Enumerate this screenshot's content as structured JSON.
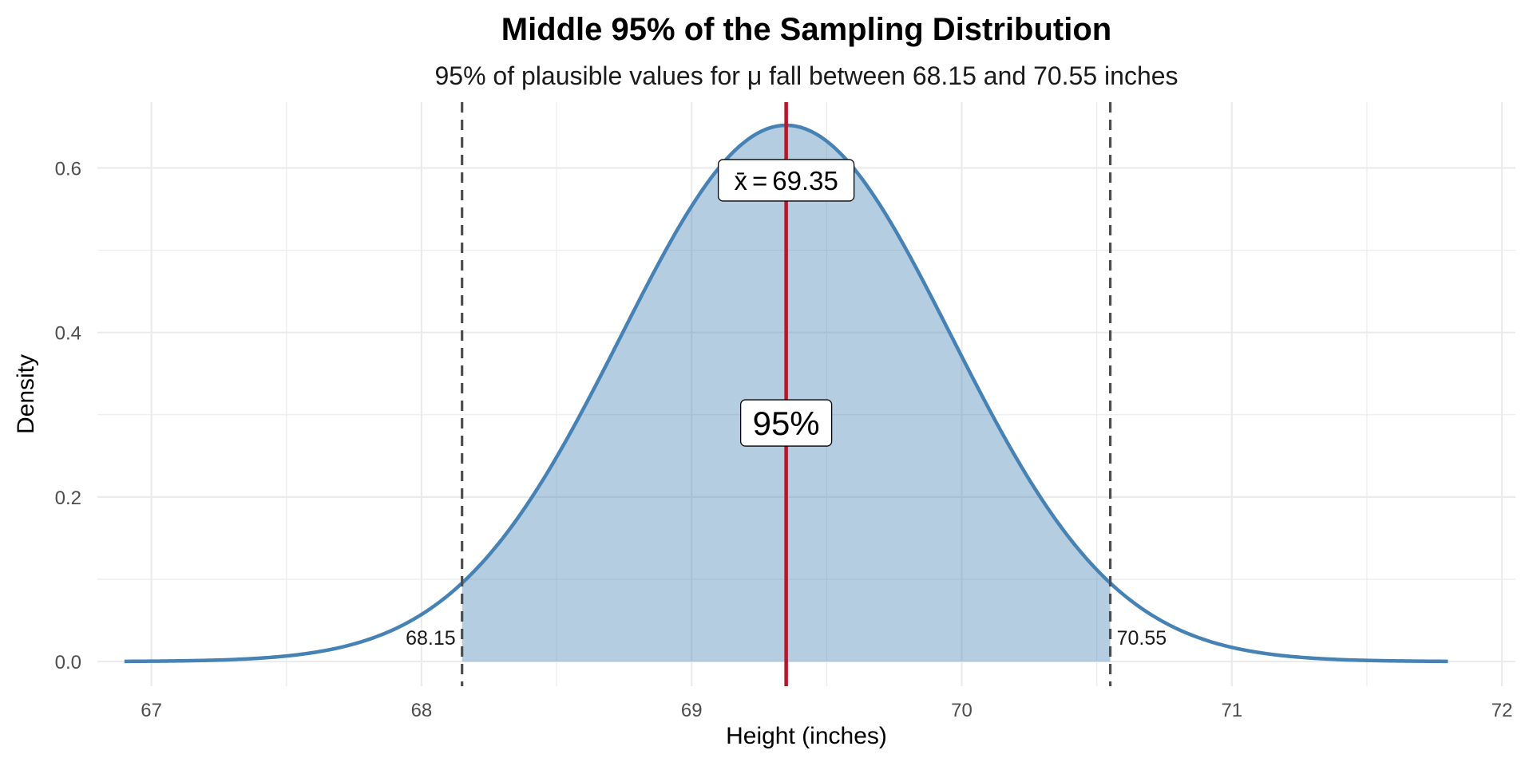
{
  "chart_data": {
    "type": "area",
    "title": "Middle 95% of the Sampling Distribution",
    "subtitle": "95% of plausible values for μ fall between 68.15 and 70.55 inches",
    "xlabel": "Height (inches)",
    "ylabel": "Density",
    "xlim": [
      66.8,
      72.05
    ],
    "ylim": [
      -0.03,
      0.68
    ],
    "x_ticks": [
      67,
      68,
      69,
      70,
      71,
      72
    ],
    "x_tick_labels": [
      "67",
      "68",
      "69",
      "70",
      "71",
      "72"
    ],
    "y_ticks": [
      0.0,
      0.2,
      0.4,
      0.6
    ],
    "y_tick_labels": [
      "0.0",
      "0.2",
      "0.4",
      "0.6"
    ],
    "grid": true,
    "distribution": {
      "type": "normal",
      "mean": 69.35,
      "sd": 0.612,
      "x_from": 66.9,
      "x_to": 71.8
    },
    "shaded_region": {
      "from": 68.15,
      "to": 70.55
    },
    "lower_bound": {
      "value": 68.15,
      "label": "68.15"
    },
    "upper_bound": {
      "value": 70.55,
      "label": "70.55"
    },
    "mean_line": {
      "value": 69.35,
      "label_prefix": "x̄",
      "label_eq": "=",
      "label_value": "69.35"
    },
    "area_label": {
      "text": "95%",
      "y": 0.29
    },
    "mean_label_y": 0.585,
    "colors": {
      "curve": "#4682b4",
      "fill": "#4682b4",
      "mean_line": "#b2182b",
      "bound_line": "#4d4d4d",
      "grid": "#ebebeb"
    }
  }
}
